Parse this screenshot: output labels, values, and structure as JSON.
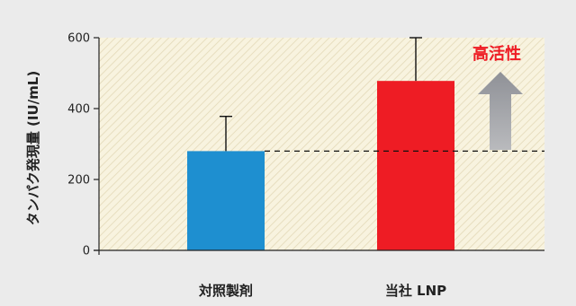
{
  "chart_data": {
    "type": "bar",
    "title": "",
    "xlabel": "",
    "ylabel": "タンパク発現量 (IU/mL)",
    "categories": [
      "対照製剤",
      "当社 LNP"
    ],
    "values": [
      280,
      478
    ],
    "error_upper": [
      378,
      600
    ],
    "ylim": [
      0,
      600
    ],
    "yticks": [
      0,
      200,
      400,
      600
    ],
    "reference_line": 280,
    "grid": false,
    "legend": "none",
    "annotation": "高活性"
  },
  "colors": {
    "background": "#ebebeb",
    "plot_fill": "#f8f3df",
    "hatch": "#e3d9b8",
    "bars": [
      "#1e8fd0",
      "#ee1c24"
    ],
    "annotation": "#ee1c24",
    "arrow": "#8f9197",
    "axis": "#222222"
  },
  "icons": {
    "arrow": "up-arrow-icon"
  }
}
